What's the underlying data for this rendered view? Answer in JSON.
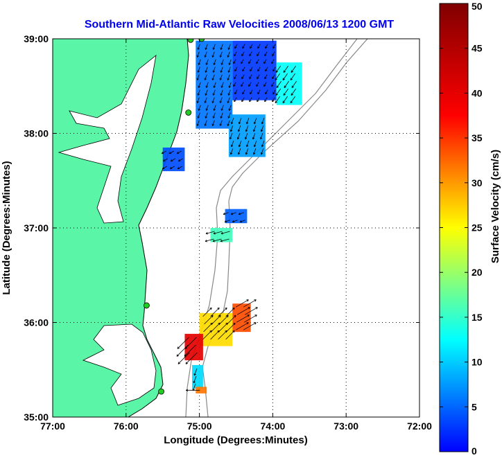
{
  "chart_data": {
    "type": "heatmap",
    "title": "Southern Mid-Atlantic Raw Velocities 2008/06/13 1200 GMT",
    "xlabel": "Longitude (Degrees:Minutes)",
    "ylabel": "Latitude (Degrees:Minutes)",
    "xlim": [
      -77,
      -72
    ],
    "ylim": [
      35,
      39
    ],
    "x_ticks": [
      {
        "value": -77,
        "label": "77:00"
      },
      {
        "value": -76,
        "label": "76:00"
      },
      {
        "value": -75,
        "label": "75:00"
      },
      {
        "value": -74,
        "label": "74:00"
      },
      {
        "value": -73,
        "label": "73:00"
      },
      {
        "value": -72,
        "label": "72:00"
      }
    ],
    "y_ticks": [
      {
        "value": 35,
        "label": "35:00"
      },
      {
        "value": 36,
        "label": "36:00"
      },
      {
        "value": 37,
        "label": "37:00"
      },
      {
        "value": 38,
        "label": "38:00"
      },
      {
        "value": 39,
        "label": "39:00"
      }
    ],
    "grid": true,
    "colorbar": {
      "label": "Surface Velocity (cm/s)",
      "range": [
        0,
        50
      ],
      "ticks": [
        {
          "value": 0,
          "label": "0"
        },
        {
          "value": 5,
          "label": "5"
        },
        {
          "value": 10,
          "label": "10"
        },
        {
          "value": 15,
          "label": "15"
        },
        {
          "value": 20,
          "label": "20"
        },
        {
          "value": 25,
          "label": "25"
        },
        {
          "value": 30,
          "label": "30"
        },
        {
          "value": 35,
          "label": "35"
        },
        {
          "value": 40,
          "label": "40"
        },
        {
          "value": 45,
          "label": "45"
        },
        {
          "value": 50,
          "label": "50"
        }
      ]
    },
    "stations": [
      {
        "lon": -75.12,
        "lat": 38.99
      },
      {
        "lon": -74.97,
        "lat": 39.0
      },
      {
        "lon": -75.15,
        "lat": 38.22
      },
      {
        "lon": -75.72,
        "lat": 36.18
      },
      {
        "lon": -75.52,
        "lat": 35.27
      }
    ],
    "regions": [
      {
        "lon": [
          -75.05,
          -74.55
        ],
        "lat": [
          38.05,
          38.98
        ],
        "speed": 12,
        "direction_deg": 200
      },
      {
        "lon": [
          -74.55,
          -73.95
        ],
        "lat": [
          38.35,
          38.98
        ],
        "speed": 9,
        "direction_deg": 210
      },
      {
        "lon": [
          -73.95,
          -73.6
        ],
        "lat": [
          38.3,
          38.75
        ],
        "speed": 19,
        "direction_deg": 215
      },
      {
        "lon": [
          -74.6,
          -74.1
        ],
        "lat": [
          37.75,
          38.2
        ],
        "speed": 14,
        "direction_deg": 200
      },
      {
        "lon": [
          -75.5,
          -75.2
        ],
        "lat": [
          37.6,
          37.85
        ],
        "speed": 10,
        "direction_deg": 240
      },
      {
        "lon": [
          -74.65,
          -74.35
        ],
        "lat": [
          37.05,
          37.2
        ],
        "speed": 11,
        "direction_deg": 250
      },
      {
        "lon": [
          -74.85,
          -74.55
        ],
        "lat": [
          36.85,
          37.0
        ],
        "speed": 22,
        "direction_deg": 255
      },
      {
        "lon": [
          -74.55,
          -74.3
        ],
        "lat": [
          35.9,
          36.2
        ],
        "speed": 40,
        "direction_deg": 60
      },
      {
        "lon": [
          -75.0,
          -74.55
        ],
        "lat": [
          35.75,
          36.1
        ],
        "speed": 33,
        "direction_deg": 45
      },
      {
        "lon": [
          -75.2,
          -74.95
        ],
        "lat": [
          35.6,
          35.88
        ],
        "speed": 45,
        "direction_deg": 225
      },
      {
        "lon": [
          -75.1,
          -74.95
        ],
        "lat": [
          35.3,
          35.55
        ],
        "speed": 17,
        "direction_deg": 200
      },
      {
        "lon": [
          -75.05,
          -74.9
        ],
        "lat": [
          35.25,
          35.32
        ],
        "speed": 38,
        "direction_deg": 270
      }
    ]
  }
}
